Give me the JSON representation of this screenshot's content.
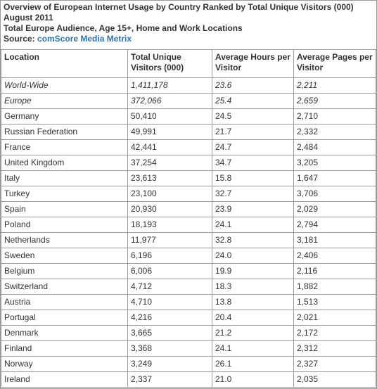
{
  "header": {
    "line1": "Overview of European Internet Usage by Country Ranked by Total Unique Visitors (000)",
    "line2": "August 2011",
    "line3": "Total Europe Audience, Age 15+, Home and Work Locations",
    "source_label": "Source: ",
    "source_link": "comScore Media Metrix"
  },
  "table": {
    "columns": [
      "Location",
      "Total Unique Visitors (000)",
      "Average Hours per Visitor",
      "Average Pages per Visitor"
    ],
    "rows": [
      [
        "World-Wide",
        "1,411,178",
        "23.6",
        "2,211"
      ],
      [
        "Europe",
        "372,066",
        "25.4",
        "2,659"
      ],
      [
        "Germany",
        "50,410",
        "24.5",
        "2,710"
      ],
      [
        "Russian Federation",
        "49,991",
        "21.7",
        "2,332"
      ],
      [
        "France",
        "42,441",
        "24.7",
        "2,484"
      ],
      [
        "United Kingdom",
        "37,254",
        "34.7",
        "3,205"
      ],
      [
        "Italy",
        "23,613",
        "15.8",
        "1,647"
      ],
      [
        "Turkey",
        "23,100",
        "32.7",
        "3,706"
      ],
      [
        "Spain",
        "20,930",
        "23.9",
        "2,029"
      ],
      [
        "Poland",
        "18,193",
        "24.1",
        "2,794"
      ],
      [
        "Netherlands",
        "11,977",
        "32.8",
        "3,181"
      ],
      [
        "Sweden",
        "6,196",
        "24.0",
        "2,406"
      ],
      [
        "Belgium",
        "6,006",
        "19.9",
        "2,116"
      ],
      [
        "Switzerland",
        "4,712",
        "18.3",
        "1,882"
      ],
      [
        "Austria",
        "4,710",
        "13.8",
        "1,513"
      ],
      [
        "Portugal",
        "4,216",
        "20.4",
        "2,021"
      ],
      [
        "Denmark",
        "3,665",
        "21.2",
        "2,172"
      ],
      [
        "Finland",
        "3,368",
        "24.1",
        "2,312"
      ],
      [
        "Norway",
        "3,249",
        "26.1",
        "2,327"
      ],
      [
        "Ireland",
        "2,337",
        "21.0",
        "2,035"
      ]
    ]
  }
}
